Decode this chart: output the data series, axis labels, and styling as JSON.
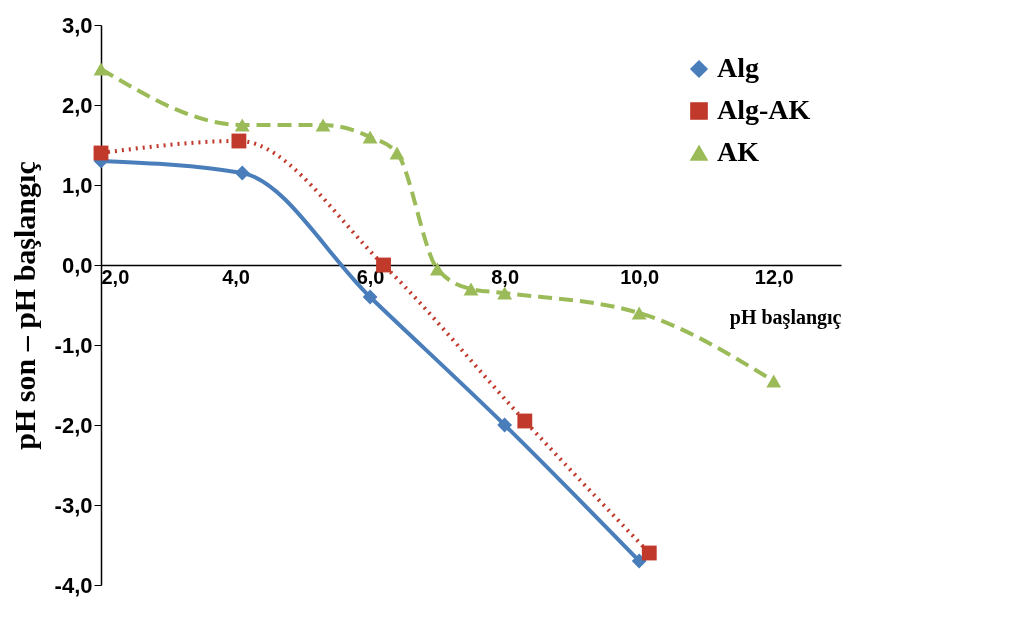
{
  "chart_data": {
    "type": "line",
    "xlabel": "pH başlangıç",
    "ylabel": "pH son – pH başlangıç",
    "xlim": [
      2,
      13
    ],
    "ylim": [
      -4,
      3
    ],
    "xticks": [
      {
        "value": 2,
        "label": "2,0"
      },
      {
        "value": 4,
        "label": "4,0"
      },
      {
        "value": 6,
        "label": "6,0"
      },
      {
        "value": 8,
        "label": "8,0"
      },
      {
        "value": 10,
        "label": "10,0"
      },
      {
        "value": 12,
        "label": "12,0"
      }
    ],
    "yticks": [
      {
        "value": -4,
        "label": "-4,0"
      },
      {
        "value": -3,
        "label": "-3,0"
      },
      {
        "value": -2,
        "label": "-2,0"
      },
      {
        "value": -1,
        "label": "-1,0"
      },
      {
        "value": 0,
        "label": "0,0"
      },
      {
        "value": 1,
        "label": "1,0"
      },
      {
        "value": 2,
        "label": "2,0"
      },
      {
        "value": 3,
        "label": "3,0"
      }
    ],
    "grid": false,
    "legend": "top right",
    "series": [
      {
        "name": "Alg",
        "color": "#4a7ebb",
        "marker": "diamond",
        "line_style": "solid",
        "x": [
          2.0,
          4.1,
          6.0,
          8.0,
          10.0
        ],
        "values": [
          1.3,
          1.15,
          -0.4,
          -2.0,
          -3.7
        ]
      },
      {
        "name": "Alg-AK",
        "color": "#c0392b",
        "marker": "square",
        "line_style": "dotted",
        "x": [
          2.0,
          4.05,
          6.2,
          8.3,
          10.15
        ],
        "values": [
          1.4,
          1.55,
          0.0,
          -1.95,
          -3.6
        ]
      },
      {
        "name": "AK",
        "color": "#9bbb59",
        "marker": "triangle",
        "line_style": "dashed",
        "x": [
          2.0,
          4.1,
          5.3,
          6.0,
          6.4,
          7.0,
          7.5,
          8.0,
          10.0,
          12.0
        ],
        "values": [
          2.45,
          1.75,
          1.75,
          1.6,
          1.4,
          -0.05,
          -0.3,
          -0.35,
          -0.6,
          -1.45
        ]
      }
    ]
  }
}
